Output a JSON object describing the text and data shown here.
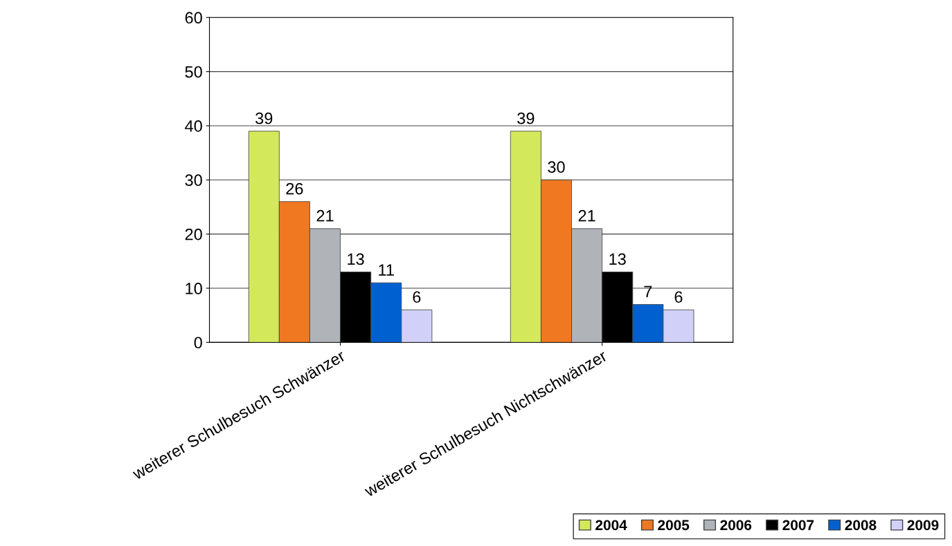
{
  "chart_data": {
    "type": "bar",
    "categories": [
      "weiterer Schulbesuch Schwänzer",
      "weiterer Schulbesuch Nichtschwänzer"
    ],
    "series": [
      {
        "name": "2004",
        "color": "#d4e85c",
        "values": [
          39,
          39
        ]
      },
      {
        "name": "2005",
        "color": "#f07820",
        "values": [
          26,
          30
        ]
      },
      {
        "name": "2006",
        "color": "#b0b4b8",
        "values": [
          21,
          21
        ]
      },
      {
        "name": "2007",
        "color": "#000000",
        "values": [
          13,
          13
        ]
      },
      {
        "name": "2008",
        "color": "#0060d0",
        "values": [
          11,
          7
        ]
      },
      {
        "name": "2009",
        "color": "#d0d0f8",
        "values": [
          6,
          6
        ]
      }
    ],
    "ylim": [
      0,
      60
    ],
    "yticks": [
      0,
      10,
      20,
      30,
      40,
      50,
      60
    ],
    "grid": "y",
    "legend": "bottom right",
    "data_labels": true
  }
}
